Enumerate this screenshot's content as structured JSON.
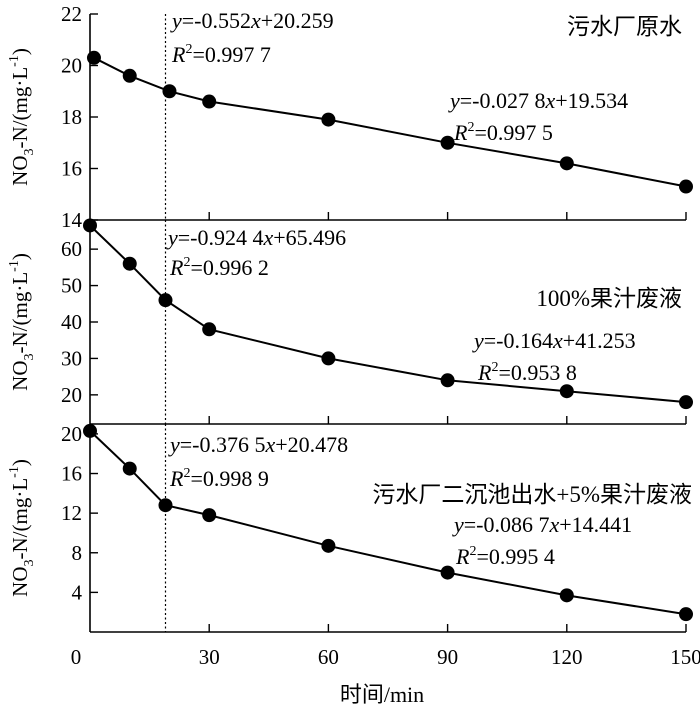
{
  "chart_data": {
    "type": "line",
    "xlabel": "时间/min",
    "x_ticks": [
      0,
      30,
      60,
      90,
      120,
      150
    ],
    "xlim": [
      0,
      150
    ],
    "guide_x": 19,
    "panels": [
      {
        "title": "污水厂原水",
        "ylabel": {
          "pre": "NO",
          "sub": "3",
          "mid": "-N/(mg·L",
          "sup": "-1",
          "post": ")"
        },
        "ylim": [
          14,
          22
        ],
        "y_ticks": [
          14,
          16,
          18,
          20,
          22
        ],
        "series": [
          {
            "x": [
              1,
              10,
              20,
              30,
              60,
              90,
              120,
              150
            ],
            "y": [
              20.3,
              19.6,
              19.0,
              18.6,
              17.9,
              17.0,
              16.2,
              15.3
            ]
          }
        ],
        "equations": [
          {
            "y": "y",
            "eq": "=-0.552",
            "x": "x",
            "rest": "+20.259",
            "r": "R",
            "r_sup": "2",
            "r_val": "=0.997 7"
          },
          {
            "y": "y",
            "eq": "=-0.027 8",
            "x": "x",
            "rest": "+19.534",
            "r": "R",
            "r_sup": "2",
            "r_val": "=0.997 5"
          }
        ]
      },
      {
        "title": "100%果汁废液",
        "ylabel": {
          "pre": "NO",
          "sub": "3",
          "mid": "-N/(mg·L",
          "sup": "-1",
          "post": ")"
        },
        "ylim": [
          12,
          68
        ],
        "y_ticks": [
          20,
          30,
          40,
          50,
          60
        ],
        "series": [
          {
            "x": [
              0,
              10,
              19,
              30,
              60,
              90,
              120,
              150
            ],
            "y": [
              66.5,
              56,
              46,
              38,
              30,
              24,
              21,
              18
            ]
          }
        ],
        "equations": [
          {
            "y": "y",
            "eq": "=-0.924 4",
            "x": "x",
            "rest": "+65.496",
            "r": "R",
            "r_sup": "2",
            "r_val": "=0.996 2"
          },
          {
            "y": "y",
            "eq": "=-0.164",
            "x": "x",
            "rest": "+41.253",
            "r": "R",
            "r_sup": "2",
            "r_val": "=0.953 8"
          }
        ]
      },
      {
        "title": "污水厂二沉池出水+5%果汁废液",
        "ylabel": {
          "pre": "NO",
          "sub": "3",
          "mid": "-N/(mg·L",
          "sup": "-1",
          "post": ")"
        },
        "ylim": [
          0,
          21
        ],
        "y_ticks": [
          4,
          8,
          12,
          16,
          20
        ],
        "series": [
          {
            "x": [
              0,
              10,
              19,
              30,
              60,
              90,
              120,
              150
            ],
            "y": [
              20.3,
              16.5,
              12.8,
              11.8,
              8.7,
              6.0,
              3.7,
              1.8
            ]
          }
        ],
        "equations": [
          {
            "y": "y",
            "eq": "=-0.376 5",
            "x": "x",
            "rest": "+20.478",
            "r": "R",
            "r_sup": "2",
            "r_val": "=0.998 9"
          },
          {
            "y": "y",
            "eq": "=-0.086 7",
            "x": "x",
            "rest": "+14.441",
            "r": "R",
            "r_sup": "2",
            "r_val": "=0.995 4"
          }
        ]
      }
    ]
  }
}
